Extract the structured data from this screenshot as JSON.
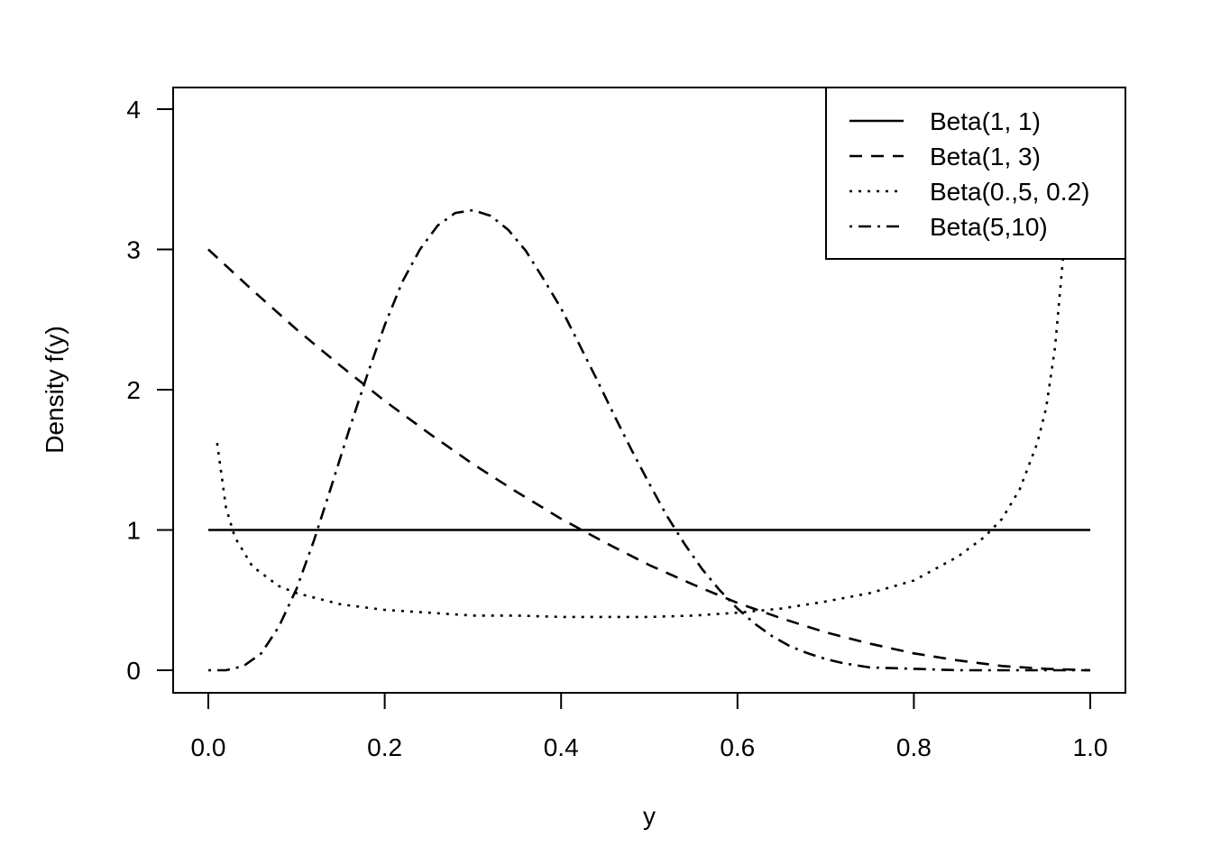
{
  "chart_data": {
    "type": "line",
    "title": "",
    "xlabel": "y",
    "ylabel": "Density f(y)",
    "xlim": [
      0,
      1
    ],
    "ylim": [
      0,
      4
    ],
    "xticks": [
      0.0,
      0.2,
      0.4,
      0.6,
      0.8,
      1.0
    ],
    "xtick_labels": [
      "0.0",
      "0.2",
      "0.4",
      "0.6",
      "0.8",
      "1.0"
    ],
    "yticks": [
      0,
      1,
      2,
      3,
      4
    ],
    "ytick_labels": [
      "0",
      "1",
      "2",
      "3",
      "4"
    ],
    "grid": false,
    "legend_position": "top-right",
    "series": [
      {
        "name": "Beta(1, 1)",
        "linestyle": "solid",
        "x": [
          0.0,
          0.1,
          0.2,
          0.3,
          0.4,
          0.5,
          0.6,
          0.7,
          0.8,
          0.9,
          1.0
        ],
        "y": [
          1,
          1,
          1,
          1,
          1,
          1,
          1,
          1,
          1,
          1,
          1
        ]
      },
      {
        "name": "Beta(1, 3)",
        "linestyle": "dashed",
        "x": [
          0.0,
          0.05,
          0.1,
          0.15,
          0.2,
          0.25,
          0.3,
          0.35,
          0.4,
          0.45,
          0.5,
          0.55,
          0.6,
          0.65,
          0.7,
          0.75,
          0.8,
          0.85,
          0.9,
          0.95,
          1.0
        ],
        "y": [
          3.0,
          2.71,
          2.43,
          2.17,
          1.92,
          1.69,
          1.47,
          1.27,
          1.08,
          0.91,
          0.75,
          0.61,
          0.48,
          0.37,
          0.27,
          0.19,
          0.12,
          0.07,
          0.03,
          0.01,
          0.0
        ]
      },
      {
        "name": "Beta(0.,5, 0.2)",
        "linestyle": "dotted",
        "x": [
          0.01,
          0.02,
          0.03,
          0.05,
          0.08,
          0.1,
          0.15,
          0.2,
          0.25,
          0.3,
          0.35,
          0.4,
          0.45,
          0.5,
          0.55,
          0.6,
          0.65,
          0.7,
          0.75,
          0.8,
          0.85,
          0.88,
          0.9,
          0.92,
          0.94,
          0.95,
          0.96,
          0.97
        ],
        "y": [
          1.62,
          1.16,
          0.95,
          0.74,
          0.6,
          0.55,
          0.47,
          0.43,
          0.41,
          0.39,
          0.39,
          0.38,
          0.38,
          0.38,
          0.39,
          0.41,
          0.44,
          0.49,
          0.55,
          0.64,
          0.81,
          0.95,
          1.08,
          1.29,
          1.62,
          1.87,
          2.3,
          3.0
        ]
      },
      {
        "name": "Beta(5,10)",
        "linestyle": "dotdash",
        "x": [
          0.0,
          0.02,
          0.04,
          0.06,
          0.08,
          0.1,
          0.12,
          0.14,
          0.16,
          0.18,
          0.2,
          0.22,
          0.24,
          0.26,
          0.28,
          0.3,
          0.32,
          0.34,
          0.36,
          0.38,
          0.4,
          0.42,
          0.44,
          0.46,
          0.48,
          0.5,
          0.52,
          0.54,
          0.56,
          0.58,
          0.6,
          0.62,
          0.64,
          0.66,
          0.68,
          0.7,
          0.72,
          0.75,
          0.8,
          0.85,
          0.9,
          0.95,
          1.0
        ],
        "y": [
          0.0,
          0.0,
          0.03,
          0.12,
          0.31,
          0.58,
          0.93,
          1.32,
          1.72,
          2.1,
          2.46,
          2.77,
          3.0,
          3.17,
          3.26,
          3.28,
          3.24,
          3.14,
          2.99,
          2.79,
          2.58,
          2.33,
          2.08,
          1.82,
          1.57,
          1.33,
          1.1,
          0.9,
          0.72,
          0.57,
          0.44,
          0.33,
          0.24,
          0.17,
          0.12,
          0.08,
          0.05,
          0.02,
          0.01,
          0.0,
          0.0,
          0.0,
          0.0
        ]
      }
    ]
  }
}
